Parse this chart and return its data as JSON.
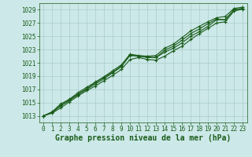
{
  "title": "Graphe pression niveau de la mer (hPa)",
  "bg_color": "#cce8e8",
  "plot_bg_color": "#cce8e8",
  "grid_color": "#aacccc",
  "line_color": "#1a5c1a",
  "xlim": [
    -0.5,
    23.5
  ],
  "ylim": [
    1012.0,
    1030.0
  ],
  "xticks": [
    0,
    1,
    2,
    3,
    4,
    5,
    6,
    7,
    8,
    9,
    10,
    11,
    12,
    13,
    14,
    15,
    16,
    17,
    18,
    19,
    20,
    21,
    22,
    23
  ],
  "yticks": [
    1013,
    1015,
    1017,
    1019,
    1021,
    1023,
    1025,
    1027,
    1029
  ],
  "series": [
    [
      1013.0,
      1013.4,
      1014.2,
      1015.1,
      1016.0,
      1016.8,
      1017.5,
      1018.3,
      1019.1,
      1020.0,
      1021.5,
      1021.8,
      1021.5,
      1021.4,
      1022.0,
      1022.8,
      1023.5,
      1024.5,
      1025.4,
      1026.2,
      1027.0,
      1027.2,
      1028.8,
      1029.1
    ],
    [
      1013.0,
      1013.5,
      1014.5,
      1015.3,
      1016.2,
      1017.0,
      1017.8,
      1018.6,
      1019.5,
      1020.4,
      1022.2,
      1022.0,
      1021.8,
      1021.8,
      1022.6,
      1023.2,
      1024.0,
      1025.0,
      1025.7,
      1026.5,
      1027.5,
      1027.5,
      1029.0,
      1029.2
    ],
    [
      1013.0,
      1013.6,
      1014.8,
      1015.5,
      1016.5,
      1017.3,
      1018.1,
      1018.9,
      1019.8,
      1020.7,
      1022.3,
      1022.1,
      1022.0,
      1022.1,
      1023.2,
      1023.8,
      1024.8,
      1025.8,
      1026.5,
      1027.2,
      1027.8,
      1028.0,
      1029.2,
      1029.4
    ],
    [
      1013.0,
      1013.5,
      1014.6,
      1015.4,
      1016.3,
      1017.1,
      1018.0,
      1018.8,
      1019.6,
      1020.5,
      1022.1,
      1022.0,
      1021.9,
      1021.8,
      1022.9,
      1023.5,
      1024.4,
      1025.4,
      1026.1,
      1026.9,
      1027.6,
      1027.5,
      1029.0,
      1029.2
    ]
  ],
  "marker": "+",
  "marker_size": 3.5,
  "line_width": 0.8,
  "title_fontsize": 7,
  "tick_fontsize": 5.5
}
